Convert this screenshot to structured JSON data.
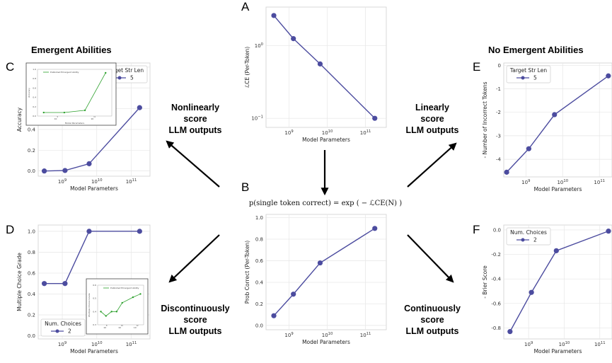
{
  "headings": {
    "emergent": "Emergent Abilities",
    "no_emergent": "No Emergent Abilities"
  },
  "panel_letters": [
    "A",
    "B",
    "C",
    "D",
    "E",
    "F"
  ],
  "methods": {
    "nonlinear": [
      "Nonlinearly",
      "score",
      "LLM outputs"
    ],
    "linear": [
      "Linearly",
      "score",
      "LLM outputs"
    ],
    "discontinuous": [
      "Discontinuously",
      "score",
      "LLM outputs"
    ],
    "continuous": [
      "Continuously",
      "score",
      "LLM outputs"
    ]
  },
  "formula": "p(single token correct) = exp ( − ℒCE(N) )",
  "colors": {
    "series": "#4c4c9f",
    "inset_series": "#2ca02c",
    "grid": "#e6e6e6",
    "arrow": "#000000"
  },
  "chart_data": [
    {
      "id": "A",
      "type": "line",
      "xscale": "log",
      "yscale": "log",
      "x": [
        400000000.0,
        1300000000.0,
        6500000000.0,
        175000000000.0
      ],
      "y": [
        2.6,
        1.25,
        0.56,
        0.1
      ],
      "xlim": [
        250000000.0,
        350000000000.0
      ],
      "ylim": [
        0.075,
        3.4
      ],
      "xticks": [
        "10^9",
        "10^10",
        "10^11"
      ],
      "yticks": [
        "10^0",
        "10^-1"
      ],
      "xlabel": "Model Parameters",
      "ylabel": "ℒCE (Per-Token)",
      "grid": true
    },
    {
      "id": "B",
      "type": "line",
      "xscale": "log",
      "x": [
        400000000.0,
        1300000000.0,
        6500000000.0,
        175000000000.0
      ],
      "y": [
        0.09,
        0.29,
        0.58,
        0.9
      ],
      "xlim": [
        250000000.0,
        350000000000.0
      ],
      "ylim": [
        -0.04,
        1.03
      ],
      "xticks": [
        "10^9",
        "10^10",
        "10^11"
      ],
      "yticks": [
        "0.0",
        "0.2",
        "0.4",
        "0.6",
        "0.8",
        "1.0"
      ],
      "xlabel": "Model Parameters",
      "ylabel": "Prob Correct (Per-Token)",
      "grid": true
    },
    {
      "id": "C",
      "type": "line",
      "xscale": "log",
      "x": [
        300000000.0,
        1200000000.0,
        6000000000.0,
        175000000000.0
      ],
      "y": [
        0.0,
        0.005,
        0.07,
        0.61
      ],
      "xlim": [
        200000000.0,
        350000000000.0
      ],
      "ylim": [
        -0.05,
        1.04
      ],
      "xticks": [
        "10^9",
        "10^10",
        "10^11"
      ],
      "yticks": [
        "0.0",
        "0.2",
        "0.4",
        "0.6",
        "0.8",
        "1.0"
      ],
      "xlabel": "Model Parameters",
      "ylabel": "Accuracy",
      "grid": true,
      "legend": {
        "title": "Target Str Len",
        "entry": "5",
        "loc": "upper right"
      },
      "inset": {
        "legend": "Published Emergent Ability",
        "x": [
          100000000.0,
          1000000000.0,
          10000000000.0,
          100000000000.0
        ],
        "y": [
          0.0,
          0.0,
          0.05,
          0.9
        ],
        "xlabel": "Model Parameters",
        "ylabel": "Accuracy",
        "xticks": [
          "10^9",
          "10^11"
        ],
        "yticks": [
          "0.0",
          "0.2",
          "0.4",
          "0.6",
          "0.8",
          "1.0"
        ]
      }
    },
    {
      "id": "D",
      "type": "line",
      "xscale": "log",
      "x": [
        300000000.0,
        1200000000.0,
        6000000000.0,
        175000000000.0
      ],
      "y": [
        0.5,
        0.5,
        1.0,
        1.0
      ],
      "xlim": [
        200000000.0,
        350000000000.0
      ],
      "ylim": [
        -0.03,
        1.06
      ],
      "xticks": [
        "10^9",
        "10^10",
        "10^11"
      ],
      "yticks": [
        "0.0",
        "0.2",
        "0.4",
        "0.6",
        "0.8",
        "1.0"
      ],
      "xlabel": "Model Parameters",
      "ylabel": "Multiple Choice Grade",
      "grid": true,
      "legend": {
        "title": "Num. Choices",
        "entry": "2",
        "loc": "lower left"
      },
      "inset": {
        "legend": "Published Emergent Ability",
        "x": [
          100000000.0,
          300000000.0,
          1000000000.0,
          3000000000.0,
          10000000000.0,
          100000000000.0,
          500000000000.0
        ],
        "y": [
          0.42,
          0.38,
          0.42,
          0.42,
          0.5,
          0.55,
          0.58
        ],
        "xlabel": "",
        "ylabel": "Multiple Choice Grade",
        "xticks": [
          "10^8",
          "10^10",
          "10^12"
        ],
        "yticks": [
          "0.3",
          "0.4",
          "0.5",
          "0.6"
        ]
      }
    },
    {
      "id": "E",
      "type": "line",
      "xscale": "log",
      "x": [
        300000000.0,
        1200000000.0,
        6000000000.0,
        175000000000.0
      ],
      "y": [
        -4.55,
        -3.55,
        -2.1,
        -0.45
      ],
      "xlim": [
        250000000.0,
        220000000000.0
      ],
      "ylim": [
        -4.75,
        0.1
      ],
      "xticks": [
        "10^9",
        "10^10",
        "10^11"
      ],
      "yticks": [
        "0",
        "-1",
        "-2",
        "-3",
        "-4"
      ],
      "xlabel": "Model Parameters",
      "ylabel": "- Number of Incorrect Tokens",
      "grid": true,
      "legend": {
        "title": "Target Str Len",
        "entry": "5",
        "loc": "upper left"
      }
    },
    {
      "id": "F",
      "type": "line",
      "xscale": "log",
      "x": [
        300000000.0,
        1200000000.0,
        6000000000.0,
        175000000000.0
      ],
      "y": [
        -0.83,
        -0.51,
        -0.17,
        -0.01
      ],
      "xlim": [
        200000000.0,
        220000000000.0
      ],
      "ylim": [
        -0.89,
        0.04
      ],
      "xticks": [
        "10^9",
        "10^10",
        "10^11"
      ],
      "yticks": [
        "0.0",
        "-0.2",
        "-0.4",
        "-0.6",
        "-0.8"
      ],
      "xlabel": "Model Parameters",
      "ylabel": "- Brier Score",
      "grid": true,
      "legend": {
        "title": "Num. Choices",
        "entry": "2",
        "loc": "upper left"
      }
    }
  ]
}
